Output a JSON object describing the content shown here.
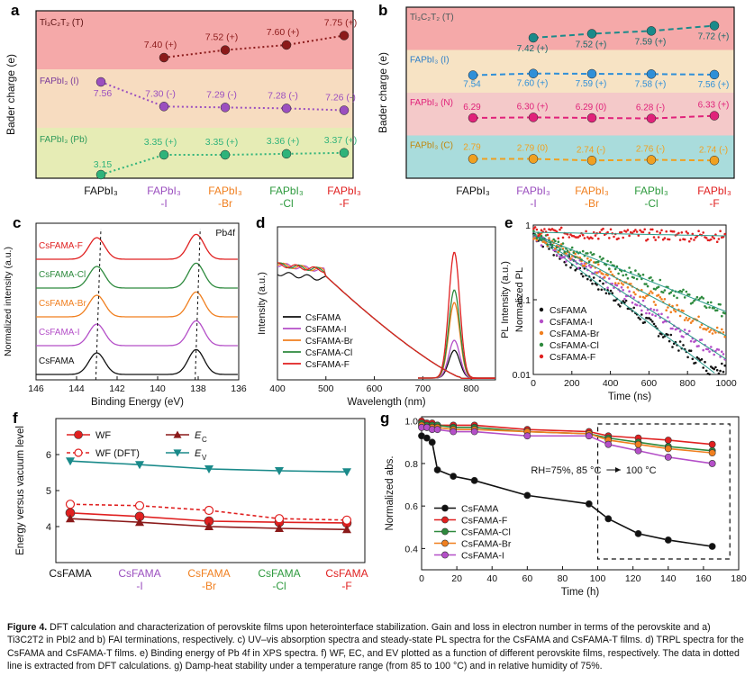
{
  "figure": {
    "caption_label": "Figure 4.",
    "caption_text": "DFT calculation and characterization of perovskite films upon heterointerface stabilization. Gain and loss in electron number in terms of the perovskite and a) Ti3C2T2 in PbI2 and b) FAI terminations, respectively. c) UV–vis absorption spectra and steady-state PL spectra for the CsFAMA and CsFAMA-T films. d) TRPL spectra for the CsFAMA and CsFAMA-T films. e) Binding energy of Pb 4f in XPS spectra. f) WF, EC, and EV plotted as a function of different perovskite films, respectively. The data in dotted line is extracted from DFT calculations. g) Damp-heat stability under a temperature range (from 85 to 100 °C) and in relative humidity of 75%."
  },
  "panel_labels": [
    "a",
    "b",
    "c",
    "d",
    "e",
    "f",
    "g"
  ],
  "colors": {
    "wine": "#8b1a1a",
    "purple": "#9b4fbf",
    "green": "#2fb37a",
    "blue": "#2f8fd8",
    "pink": "#e0227a",
    "orange": "#f0a020",
    "red": "#e02020",
    "black": "#111111",
    "teal": "#1a8a8a",
    "darkred": "#7a0f0f",
    "orange_mid": "#f07f1f"
  },
  "chart_data": [
    {
      "id": "a",
      "type": "line",
      "ylabel": "Bader charge (e)",
      "categories": [
        "FAPbI3",
        "FAPbI3-I",
        "FAPbI3-Br",
        "FAPbI3-Cl",
        "FAPbI3-F"
      ],
      "category_lines": [
        [
          "FAPbI₃",
          ""
        ],
        [
          "FAPbI₃",
          "-I"
        ],
        [
          "FAPbI₃",
          "-Br"
        ],
        [
          "FAPbI₃",
          "-Cl"
        ],
        [
          "FAPbI₃",
          "-F"
        ]
      ],
      "category_colors": [
        "#111111",
        "#9b4fbf",
        "#f07f1f",
        "#2e9a3e",
        "#e02020"
      ],
      "bands": [
        {
          "name": "Ti₃C₂T₂ (T)",
          "color": "#f5a9a9"
        },
        {
          "name": "FAPbI₃ (I)",
          "color": "#f7dcc0"
        },
        {
          "name": "FAPbI₃ (Pb)",
          "color": "#e6ecb5"
        }
      ],
      "series": [
        {
          "name": "Ti3C2T2 (T)",
          "color": "#8b1a1a",
          "values": [
            null,
            7.4,
            7.52,
            7.6,
            7.75
          ],
          "labels": [
            "",
            "7.40 (+)",
            "7.52 (+)",
            "7.60 (+)",
            "7.75 (+)"
          ]
        },
        {
          "name": "FAPbI3 (I)",
          "color": "#9b4fbf",
          "values": [
            7.56,
            7.3,
            7.29,
            7.28,
            7.26
          ],
          "labels": [
            "7.56",
            "7.30 (-)",
            "7.29 (-)",
            "7.28 (-)",
            "7.26 (-)"
          ]
        },
        {
          "name": "FAPbI3 (Pb)",
          "color": "#2fb37a",
          "values": [
            3.15,
            3.35,
            3.35,
            3.36,
            3.37
          ],
          "labels": [
            "3.15",
            "3.35 (+)",
            "3.35 (+)",
            "3.36 (+)",
            "3.37 (+)"
          ]
        }
      ]
    },
    {
      "id": "b",
      "type": "line",
      "ylabel": "Bader charge (e)",
      "categories": [
        "FAPbI3",
        "FAPbI3-I",
        "FAPbI3-Br",
        "FAPbI3-Cl",
        "FAPbI3-F"
      ],
      "category_lines": [
        [
          "FAPbI₃",
          ""
        ],
        [
          "FAPbI₃",
          "-I"
        ],
        [
          "FAPbI₃",
          "-Br"
        ],
        [
          "FAPbI₃",
          "-Cl"
        ],
        [
          "FAPbI₃",
          "-F"
        ]
      ],
      "category_colors": [
        "#111111",
        "#9b4fbf",
        "#f07f1f",
        "#2e9a3e",
        "#e02020"
      ],
      "bands": [
        {
          "name": "Ti₃C₂T₂ (T)",
          "color": "#f5a9a9"
        },
        {
          "name": "FAPbI₃ (I)",
          "color": "#f7e3c4"
        },
        {
          "name": "FAPbI₃ (N)",
          "color": "#f4c9c9"
        },
        {
          "name": "FAPbI₃ (C)",
          "color": "#a9dcdc"
        }
      ],
      "series": [
        {
          "name": "Ti3C2T2 (T)",
          "color": "#1a8a8a",
          "values": [
            null,
            7.42,
            7.52,
            7.59,
            7.72
          ],
          "labels": [
            "",
            "7.42 (+)",
            "7.52 (+)",
            "7.59 (+)",
            "7.72 (+)"
          ]
        },
        {
          "name": "FAPbI3 (I)",
          "color": "#2f8fd8",
          "values": [
            7.54,
            7.6,
            7.59,
            7.58,
            7.56
          ],
          "labels": [
            "7.54",
            "7.60 (+)",
            "7.59 (+)",
            "7.58 (+)",
            "7.56 (+)"
          ]
        },
        {
          "name": "FAPbI3 (N)",
          "color": "#e0227a",
          "values": [
            6.29,
            6.3,
            6.29,
            6.28,
            6.33
          ],
          "labels": [
            "6.29",
            "6.30 (+)",
            "6.29 (0)",
            "6.28 (-)",
            "6.33 (+)"
          ]
        },
        {
          "name": "FAPbI3 (C)",
          "color": "#f0a020",
          "values": [
            2.79,
            2.79,
            2.74,
            2.76,
            2.74
          ],
          "labels": [
            "2.79",
            "2.79 (0)",
            "2.74 (-)",
            "2.76 (-)",
            "2.74 (-)"
          ]
        }
      ]
    },
    {
      "id": "c",
      "type": "line",
      "xlabel": "Binding Energy (eV)",
      "ylabel": "Normalized intensity (a.u.)",
      "xlim": [
        146,
        136
      ],
      "xticks": [
        146,
        144,
        142,
        140,
        138,
        136
      ],
      "annotation": "Pb4f",
      "peaks_eV": [
        143.0,
        138.1
      ],
      "series": [
        {
          "name": "CsFAMA",
          "color": "#111111"
        },
        {
          "name": "CsFAMA-I",
          "color": "#b44fc8"
        },
        {
          "name": "CsFAMA-Br",
          "color": "#f07f1f"
        },
        {
          "name": "CsFAMA-Cl",
          "color": "#2e8a3e"
        },
        {
          "name": "CsFAMA-F",
          "color": "#e02020"
        }
      ]
    },
    {
      "id": "d",
      "type": "line",
      "xlabel": "Wavelength (nm)",
      "ylabel": "Intensity (a.u.)",
      "xlim": [
        400,
        850
      ],
      "xticks": [
        400,
        500,
        600,
        700,
        800
      ],
      "pl_peak_nm": 765,
      "series": [
        {
          "name": "CsFAMA",
          "color": "#111111",
          "pl_peak": 0.22
        },
        {
          "name": "CsFAMA-I",
          "color": "#b44fc8",
          "pl_peak": 0.3
        },
        {
          "name": "CsFAMA-Br",
          "color": "#f07f1f",
          "pl_peak": 0.6
        },
        {
          "name": "CsFAMA-Cl",
          "color": "#2e8a3e",
          "pl_peak": 0.7
        },
        {
          "name": "CsFAMA-F",
          "color": "#e02020",
          "pl_peak": 1.0
        }
      ]
    },
    {
      "id": "e",
      "type": "scatter",
      "xlabel": "Time (ns)",
      "ylabel": "Normalized PL",
      "y2label": "PL Intensity (a.u.)",
      "xlim": [
        0,
        1000
      ],
      "ylim": [
        0.01,
        1
      ],
      "yscale": "log",
      "xticks": [
        0,
        200,
        400,
        600,
        800,
        1000
      ],
      "yticks": [
        0.01,
        0.1,
        1
      ],
      "series": [
        {
          "name": "CsFAMA",
          "color": "#111111",
          "tau": 220
        },
        {
          "name": "CsFAMA-I",
          "color": "#b44fc8",
          "tau": 260
        },
        {
          "name": "CsFAMA-Br",
          "color": "#f07f1f",
          "tau": 320
        },
        {
          "name": "CsFAMA-Cl",
          "color": "#2e8a3e",
          "tau": 420
        },
        {
          "name": "CsFAMA-F",
          "color": "#e02020",
          "tau": 9000
        }
      ]
    },
    {
      "id": "f",
      "type": "line",
      "ylabel": "Energy versus vacuum level",
      "ylim": [
        3,
        7
      ],
      "yticks": [
        4,
        5,
        6
      ],
      "categories": [
        "CsFAMA",
        "CsFAMA-I",
        "CsFAMA-Br",
        "CsFAMA-Cl",
        "CsFAMA-F"
      ],
      "category_lines": [
        [
          "CsFAMA",
          ""
        ],
        [
          "CsFAMA",
          "-I"
        ],
        [
          "CsFAMA",
          "-Br"
        ],
        [
          "CsFAMA",
          "-Cl"
        ],
        [
          "CsFAMA",
          "-F"
        ]
      ],
      "category_colors": [
        "#111111",
        "#9b4fbf",
        "#f07f1f",
        "#2e9a3e",
        "#e02020"
      ],
      "series": [
        {
          "name": "WF",
          "color": "#e02020",
          "marker": "circle",
          "values": [
            4.38,
            4.28,
            4.15,
            4.12,
            4.1
          ]
        },
        {
          "name": "WF (DFT)",
          "color": "#e02020",
          "marker": "open-circle",
          "dashed": true,
          "values": [
            4.62,
            4.58,
            4.45,
            4.22,
            4.18
          ]
        },
        {
          "name": "E",
          "sub": "C",
          "color": "#8b1a1a",
          "marker": "triangle",
          "values": [
            4.22,
            4.12,
            4.0,
            3.95,
            3.92
          ]
        },
        {
          "name": "E",
          "sub": "V",
          "color": "#1a8a8a",
          "marker": "tri-down",
          "values": [
            5.82,
            5.72,
            5.6,
            5.55,
            5.52
          ]
        }
      ]
    },
    {
      "id": "g",
      "type": "line",
      "xlabel": "Time (h)",
      "ylabel": "Normalized abs.",
      "xlim": [
        0,
        180
      ],
      "ylim": [
        0.3,
        1.02
      ],
      "xticks": [
        0,
        20,
        40,
        60,
        80,
        100,
        120,
        140,
        160,
        180
      ],
      "yticks": [
        0.4,
        0.6,
        0.8,
        1.0
      ],
      "annotation": "RH=75%, 85 °C",
      "annotation2": "100 °C",
      "x": [
        0,
        3,
        6,
        9,
        18,
        30,
        60,
        95,
        106,
        123,
        140,
        165
      ],
      "series": [
        {
          "name": "CsFAMA",
          "color": "#111111",
          "values": [
            0.93,
            0.92,
            0.9,
            0.77,
            0.74,
            0.72,
            0.65,
            0.61,
            0.54,
            0.47,
            0.44,
            0.41
          ]
        },
        {
          "name": "CsFAMA-F",
          "color": "#e02020",
          "values": [
            1.0,
            0.99,
            0.99,
            0.98,
            0.98,
            0.98,
            0.96,
            0.95,
            0.93,
            0.92,
            0.91,
            0.89
          ]
        },
        {
          "name": "CsFAMA-Cl",
          "color": "#2e8a3e",
          "values": [
            0.99,
            0.98,
            0.98,
            0.98,
            0.97,
            0.97,
            0.95,
            0.94,
            0.92,
            0.9,
            0.88,
            0.86
          ]
        },
        {
          "name": "CsFAMA-Br",
          "color": "#f07f1f",
          "values": [
            0.98,
            0.97,
            0.97,
            0.97,
            0.96,
            0.96,
            0.95,
            0.94,
            0.91,
            0.89,
            0.87,
            0.85
          ]
        },
        {
          "name": "CsFAMA-I",
          "color": "#b44fc8",
          "values": [
            0.97,
            0.97,
            0.96,
            0.96,
            0.95,
            0.95,
            0.93,
            0.93,
            0.89,
            0.86,
            0.83,
            0.8
          ]
        }
      ]
    }
  ]
}
